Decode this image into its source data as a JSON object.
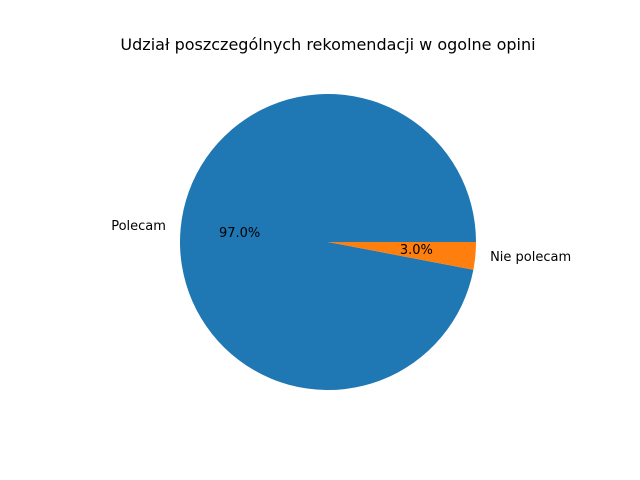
{
  "chart_data": {
    "type": "pie",
    "title": "Udział poszczególnych rekomendacji w ogolne opini",
    "categories": [
      "Polecam",
      "Nie polecam"
    ],
    "values": [
      97.0,
      3.0
    ],
    "percent_labels": [
      "97.0%",
      "3.0%"
    ],
    "colors": [
      "#1f77b4",
      "#ff7f0e"
    ],
    "start_angle_deg": 0,
    "direction": "counterclockwise"
  }
}
